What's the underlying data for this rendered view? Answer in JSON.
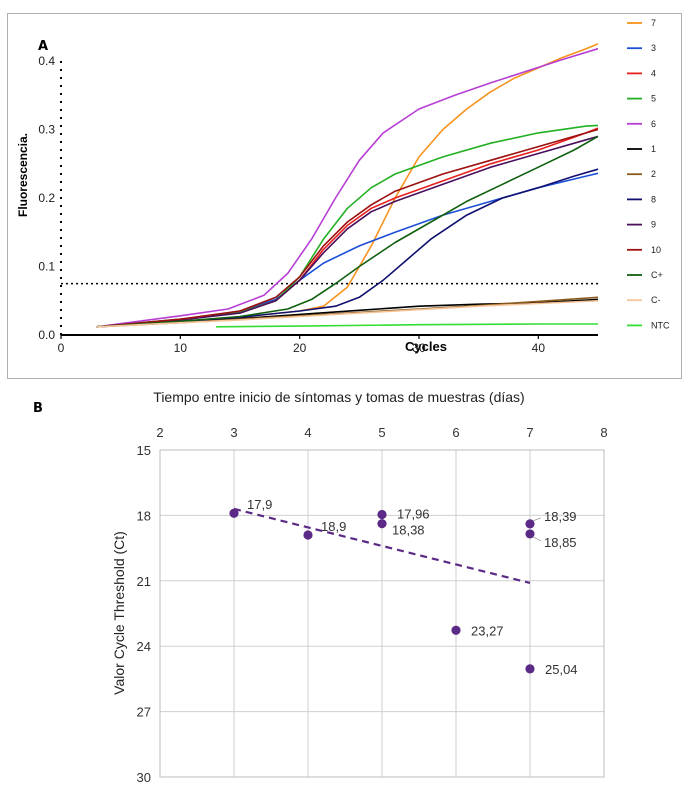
{
  "chart_data": [
    {
      "type": "line",
      "panel_label": "A",
      "xlabel": "Cycles",
      "ylabel": "Fluorescencia.",
      "xlim": [
        0,
        45
      ],
      "ylim": [
        0,
        0.4
      ],
      "x_ticks": [
        0,
        10,
        20,
        30,
        40
      ],
      "y_ticks": [
        0.0,
        0.1,
        0.2,
        0.3,
        0.4
      ],
      "y_tick_labels": [
        "0.0",
        "0.1",
        "0.2",
        "0.3",
        "0.4"
      ],
      "threshold": 0.075,
      "grid": false,
      "legend_position": "right",
      "series": [
        {
          "name": "7",
          "color": "#f7931e",
          "points": [
            [
              3,
              0.012
            ],
            [
              10,
              0.02
            ],
            [
              15,
              0.026
            ],
            [
              20,
              0.035
            ],
            [
              22,
              0.042
            ],
            [
              24,
              0.07
            ],
            [
              26,
              0.13
            ],
            [
              28,
              0.2
            ],
            [
              30,
              0.26
            ],
            [
              32,
              0.3
            ],
            [
              34,
              0.33
            ],
            [
              36,
              0.355
            ],
            [
              38,
              0.375
            ],
            [
              40,
              0.39
            ],
            [
              42,
              0.405
            ],
            [
              44,
              0.418
            ],
            [
              45,
              0.425
            ]
          ]
        },
        {
          "name": "3",
          "color": "#1c4fd6",
          "points": [
            [
              3,
              0.012
            ],
            [
              10,
              0.022
            ],
            [
              15,
              0.035
            ],
            [
              18,
              0.052
            ],
            [
              20,
              0.08
            ],
            [
              22,
              0.105
            ],
            [
              25,
              0.13
            ],
            [
              28,
              0.15
            ],
            [
              32,
              0.175
            ],
            [
              36,
              0.195
            ],
            [
              40,
              0.215
            ],
            [
              44,
              0.232
            ],
            [
              45,
              0.236
            ]
          ]
        },
        {
          "name": "4",
          "color": "#e8201e",
          "points": [
            [
              3,
              0.012
            ],
            [
              10,
              0.023
            ],
            [
              15,
              0.033
            ],
            [
              18,
              0.05
            ],
            [
              20,
              0.08
            ],
            [
              22,
              0.125
            ],
            [
              24,
              0.16
            ],
            [
              26,
              0.185
            ],
            [
              28,
              0.2
            ],
            [
              32,
              0.225
            ],
            [
              36,
              0.25
            ],
            [
              40,
              0.27
            ],
            [
              44,
              0.295
            ],
            [
              45,
              0.302
            ]
          ]
        },
        {
          "name": "5",
          "color": "#22b022",
          "points": [
            [
              3,
              0.012
            ],
            [
              10,
              0.023
            ],
            [
              15,
              0.033
            ],
            [
              18,
              0.05
            ],
            [
              20,
              0.085
            ],
            [
              22,
              0.14
            ],
            [
              24,
              0.185
            ],
            [
              26,
              0.215
            ],
            [
              28,
              0.235
            ],
            [
              32,
              0.26
            ],
            [
              36,
              0.28
            ],
            [
              40,
              0.295
            ],
            [
              44,
              0.305
            ],
            [
              45,
              0.306
            ]
          ]
        },
        {
          "name": "6",
          "color": "#b73ed4",
          "points": [
            [
              3,
              0.012
            ],
            [
              10,
              0.028
            ],
            [
              14,
              0.038
            ],
            [
              17,
              0.058
            ],
            [
              19,
              0.09
            ],
            [
              21,
              0.14
            ],
            [
              23,
              0.2
            ],
            [
              25,
              0.255
            ],
            [
              27,
              0.295
            ],
            [
              30,
              0.33
            ],
            [
              33,
              0.35
            ],
            [
              36,
              0.368
            ],
            [
              39,
              0.385
            ],
            [
              42,
              0.402
            ],
            [
              45,
              0.418
            ]
          ]
        },
        {
          "name": "1",
          "color": "#000000",
          "points": [
            [
              3,
              0.012
            ],
            [
              10,
              0.02
            ],
            [
              15,
              0.024
            ],
            [
              20,
              0.03
            ],
            [
              25,
              0.036
            ],
            [
              30,
              0.042
            ],
            [
              35,
              0.045
            ],
            [
              40,
              0.047
            ],
            [
              45,
              0.052
            ]
          ]
        },
        {
          "name": "2",
          "color": "#8b5a1a",
          "points": [
            [
              3,
              0.012
            ],
            [
              10,
              0.018
            ],
            [
              15,
              0.023
            ],
            [
              20,
              0.028
            ],
            [
              25,
              0.033
            ],
            [
              30,
              0.038
            ],
            [
              35,
              0.043
            ],
            [
              40,
              0.049
            ],
            [
              45,
              0.055
            ]
          ]
        },
        {
          "name": "8",
          "color": "#101070",
          "points": [
            [
              3,
              0.012
            ],
            [
              10,
              0.02
            ],
            [
              15,
              0.026
            ],
            [
              20,
              0.035
            ],
            [
              23,
              0.042
            ],
            [
              25,
              0.055
            ],
            [
              27,
              0.08
            ],
            [
              29,
              0.11
            ],
            [
              31,
              0.14
            ],
            [
              34,
              0.175
            ],
            [
              37,
              0.2
            ],
            [
              40,
              0.215
            ],
            [
              43,
              0.232
            ],
            [
              45,
              0.242
            ]
          ]
        },
        {
          "name": "9",
          "color": "#4a0f5c",
          "points": [
            [
              3,
              0.012
            ],
            [
              10,
              0.022
            ],
            [
              15,
              0.032
            ],
            [
              18,
              0.05
            ],
            [
              20,
              0.08
            ],
            [
              22,
              0.12
            ],
            [
              24,
              0.155
            ],
            [
              26,
              0.18
            ],
            [
              28,
              0.195
            ],
            [
              32,
              0.22
            ],
            [
              36,
              0.245
            ],
            [
              40,
              0.265
            ],
            [
              44,
              0.285
            ],
            [
              45,
              0.29
            ]
          ]
        },
        {
          "name": "10",
          "color": "#9c1010",
          "points": [
            [
              3,
              0.012
            ],
            [
              10,
              0.023
            ],
            [
              15,
              0.035
            ],
            [
              18,
              0.055
            ],
            [
              20,
              0.085
            ],
            [
              22,
              0.13
            ],
            [
              24,
              0.165
            ],
            [
              26,
              0.19
            ],
            [
              28,
              0.21
            ],
            [
              32,
              0.235
            ],
            [
              36,
              0.255
            ],
            [
              40,
              0.275
            ],
            [
              44,
              0.295
            ],
            [
              45,
              0.3
            ]
          ]
        },
        {
          "name": "C+",
          "color": "#106010",
          "points": [
            [
              3,
              0.012
            ],
            [
              10,
              0.02
            ],
            [
              15,
              0.027
            ],
            [
              19,
              0.038
            ],
            [
              21,
              0.052
            ],
            [
              23,
              0.075
            ],
            [
              25,
              0.1
            ],
            [
              28,
              0.135
            ],
            [
              31,
              0.165
            ],
            [
              34,
              0.195
            ],
            [
              37,
              0.22
            ],
            [
              40,
              0.245
            ],
            [
              43,
              0.27
            ],
            [
              45,
              0.29
            ]
          ]
        },
        {
          "name": "C-",
          "color": "#f5c499",
          "points": [
            [
              3,
              0.012
            ],
            [
              10,
              0.018
            ],
            [
              15,
              0.022
            ],
            [
              20,
              0.027
            ],
            [
              25,
              0.032
            ],
            [
              30,
              0.037
            ],
            [
              35,
              0.042
            ],
            [
              40,
              0.046
            ],
            [
              45,
              0.05
            ]
          ]
        },
        {
          "name": "NTC",
          "color": "#33dd33",
          "points": [
            [
              13,
              0.012
            ],
            [
              20,
              0.013
            ],
            [
              30,
              0.015
            ],
            [
              40,
              0.016
            ],
            [
              45,
              0.016
            ]
          ]
        }
      ]
    },
    {
      "type": "scatter",
      "panel_label": "B",
      "title": "Tiempo entre inicio de síntomas y tomas de muestras (días)",
      "xlabel": "Tiempo entre inicio de síntomas y tomas de muestras (días)",
      "ylabel": "Valor Cycle Threshold (Ct)",
      "xlim": [
        2,
        8
      ],
      "ylim": [
        15,
        30
      ],
      "y_reversed": true,
      "x_axis_position": "top",
      "grid": true,
      "x_ticks": [
        2,
        3,
        4,
        5,
        6,
        7,
        8
      ],
      "y_ticks": [
        15,
        18,
        21,
        24,
        27,
        30
      ],
      "point_color": "#5b2a86",
      "points": [
        {
          "x": 3,
          "y": 17.9,
          "label": "17,9"
        },
        {
          "x": 4,
          "y": 18.9,
          "label": "18,9"
        },
        {
          "x": 5,
          "y": 17.96,
          "label": "17,96"
        },
        {
          "x": 5,
          "y": 18.38,
          "label": "18,38"
        },
        {
          "x": 6,
          "y": 23.27,
          "label": "23,27"
        },
        {
          "x": 7,
          "y": 18.39,
          "label": "18,39"
        },
        {
          "x": 7,
          "y": 18.85,
          "label": "18,85"
        },
        {
          "x": 7,
          "y": 25.04,
          "label": "25,04"
        }
      ],
      "trendline": {
        "x": [
          3,
          7
        ],
        "y": [
          17.7,
          21.1
        ],
        "style": "dashed"
      }
    }
  ]
}
